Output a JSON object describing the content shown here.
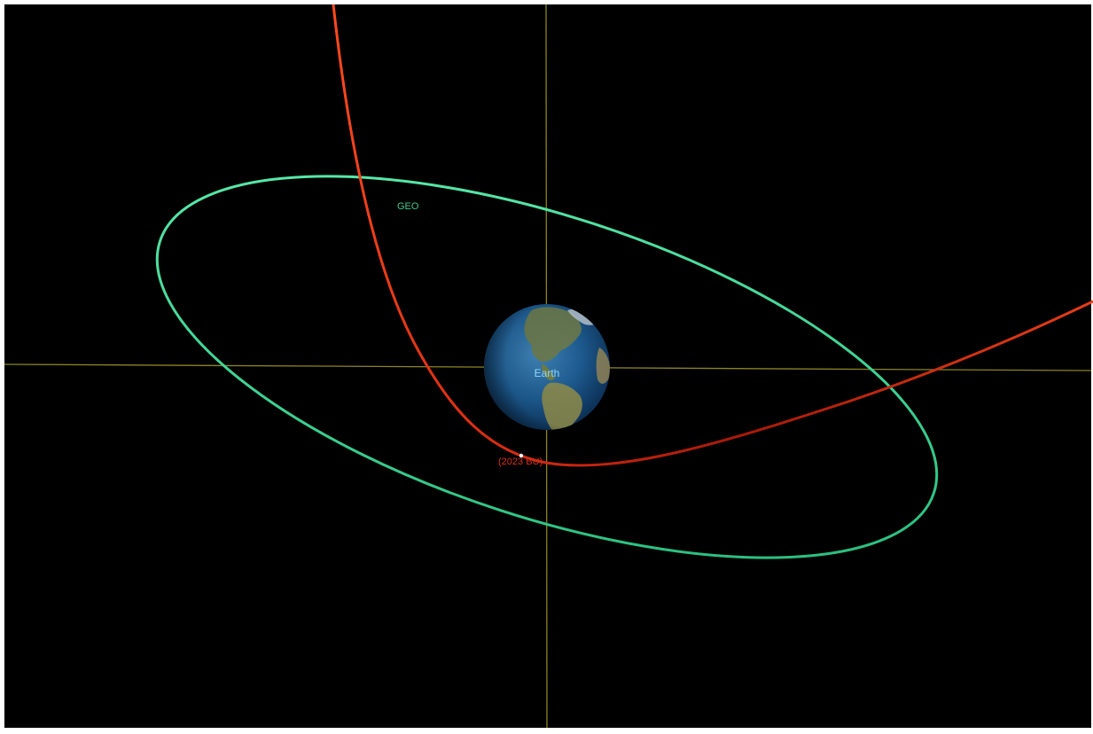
{
  "labels": {
    "geo_orbit": "GEO",
    "earth": "Earth",
    "asteroid": "(2023 BU)"
  },
  "colors": {
    "background": "#000000",
    "axis_lines": "#a59a2c",
    "geo_orbit": "#33d18f",
    "geo_orbit_light": "#4fefa6",
    "asteroid_path": "#ff3b14",
    "asteroid_path_dark": "#b01c08",
    "earth_label": "#8fd6ff",
    "geo_label": "#3fc98f",
    "asteroid_label": "#d8321a"
  },
  "icons": [
    "earth-globe-icon",
    "asteroid-marker-icon"
  ]
}
